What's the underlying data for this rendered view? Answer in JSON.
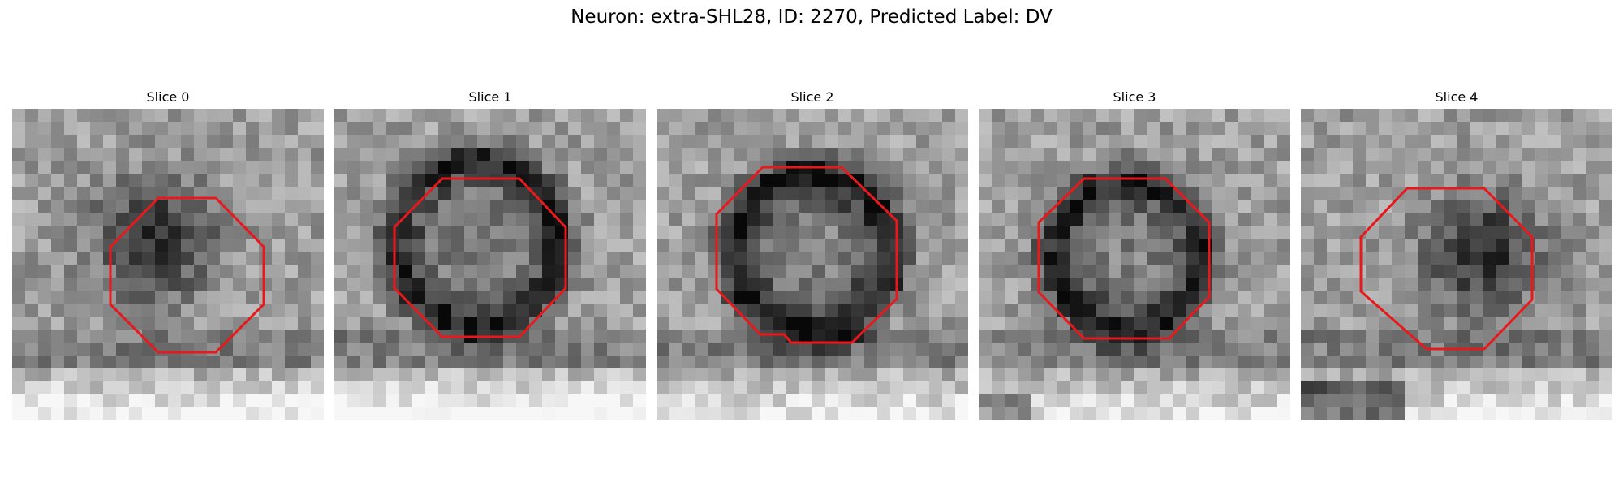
{
  "figure": {
    "title": "Neuron: extra-SHL28, ID: 2270, Predicted Label: DV"
  },
  "panels": [
    {
      "title": "Slice 0"
    },
    {
      "title": "Slice 1"
    },
    {
      "title": "Slice 2"
    },
    {
      "title": "Slice 3"
    },
    {
      "title": "Slice 4"
    }
  ],
  "colors": {
    "outline": "#e8191c",
    "background": "#ffffff"
  }
}
